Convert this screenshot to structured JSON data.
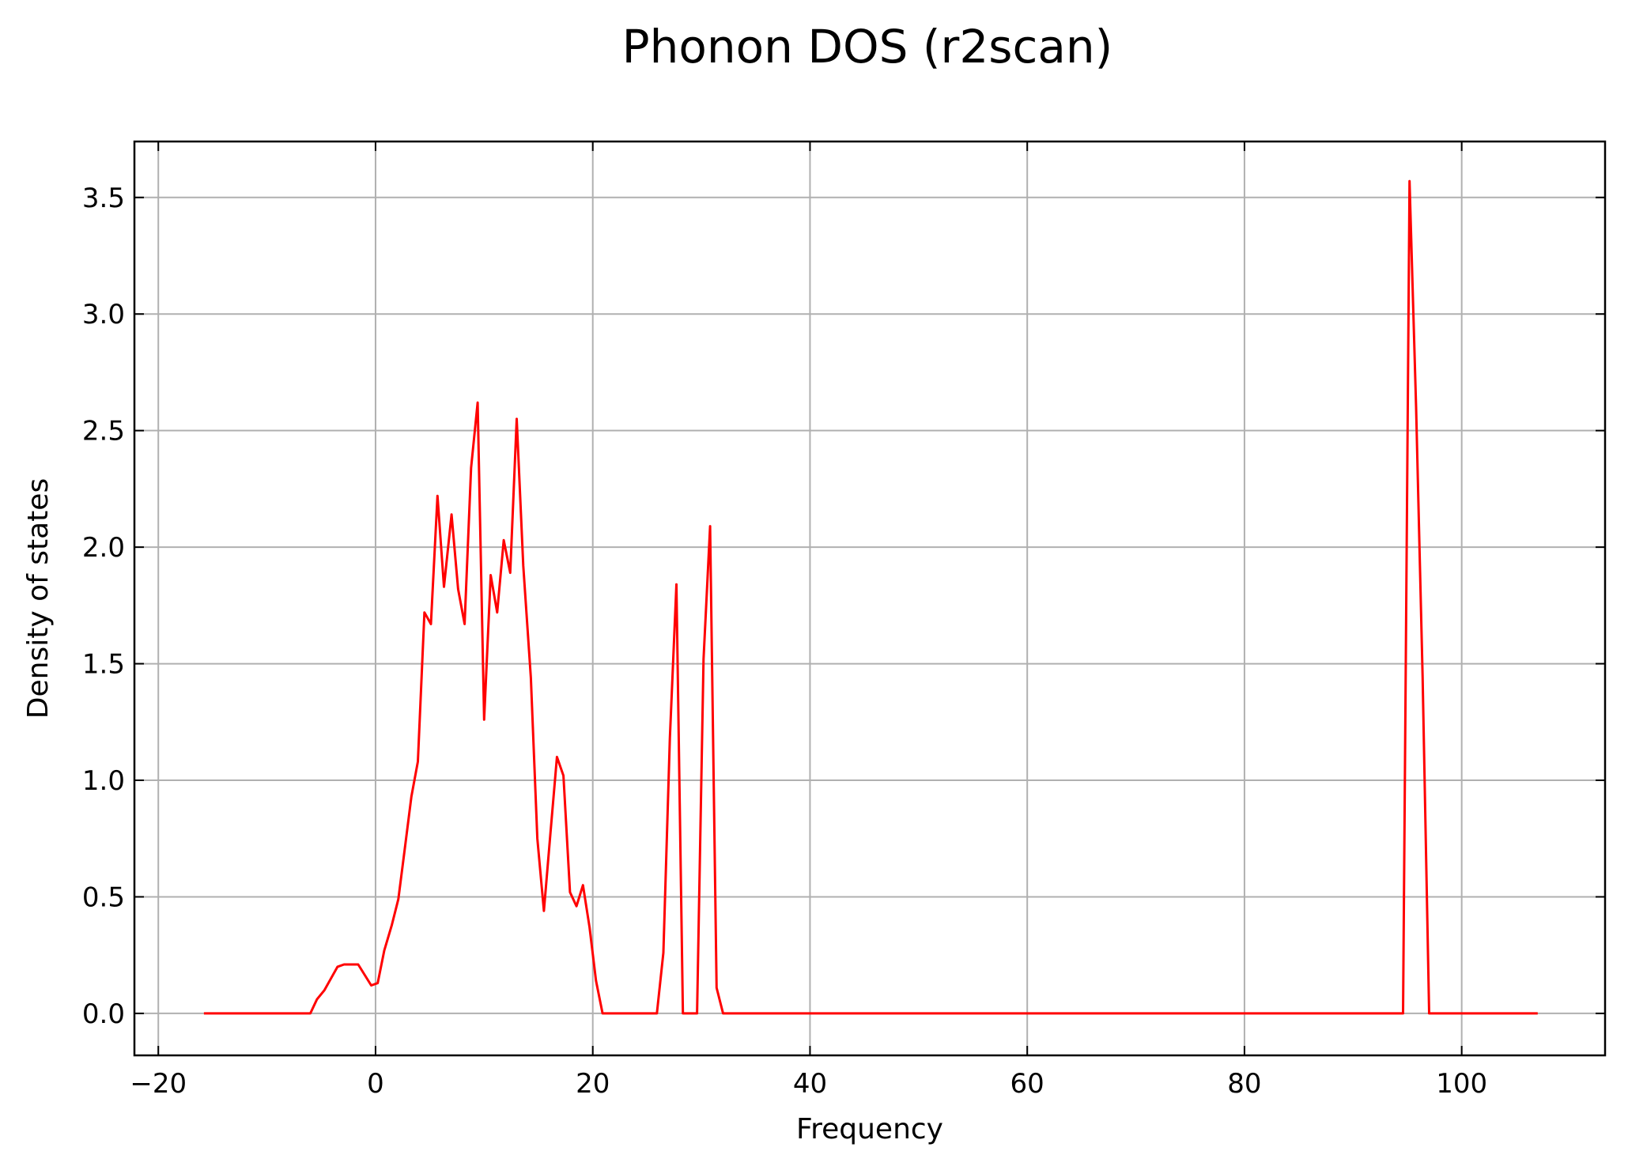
{
  "chart_data": {
    "type": "line",
    "title": "Phonon DOS (r2scan)",
    "xlabel": "Frequency",
    "ylabel": "Density of states",
    "xlim": [
      -22.2,
      113.2
    ],
    "ylim": [
      -0.18,
      3.74
    ],
    "x_ticks": [
      -20,
      0,
      20,
      40,
      60,
      80,
      100
    ],
    "x_tick_labels": [
      "−20",
      "0",
      "20",
      "40",
      "60",
      "80",
      "100"
    ],
    "y_ticks": [
      0.0,
      0.5,
      1.0,
      1.5,
      2.0,
      2.5,
      3.0,
      3.5
    ],
    "y_tick_labels": [
      "0.0",
      "0.5",
      "1.0",
      "1.5",
      "2.0",
      "2.5",
      "3.0",
      "3.5"
    ],
    "grid": true,
    "series": [
      {
        "color": "#ff0000",
        "x": [
          -15.8,
          -6.0,
          -5.4,
          -4.7,
          -4.1,
          -3.5,
          -2.9,
          -2.2,
          -1.6,
          -0.4,
          0.2,
          0.8,
          1.5,
          2.1,
          2.7,
          3.3,
          3.9,
          4.5,
          5.1,
          5.7,
          6.3,
          7.0,
          7.6,
          8.2,
          8.8,
          9.4,
          10.0,
          10.6,
          11.2,
          11.8,
          12.4,
          13.0,
          13.6,
          14.3,
          14.9,
          15.5,
          16.1,
          16.7,
          17.3,
          17.9,
          18.5,
          19.1,
          19.7,
          20.3,
          20.9,
          25.9,
          26.5,
          27.1,
          27.7,
          28.3,
          29.6,
          30.2,
          30.8,
          31.4,
          32.0,
          94.6,
          95.2,
          95.8,
          96.4,
          97.0,
          107.0
        ],
        "y": [
          0.0,
          0.0,
          0.06,
          0.1,
          0.15,
          0.2,
          0.21,
          0.21,
          0.21,
          0.12,
          0.13,
          0.27,
          0.38,
          0.49,
          0.71,
          0.93,
          1.08,
          1.72,
          1.67,
          2.22,
          1.83,
          2.14,
          1.82,
          1.67,
          2.34,
          2.62,
          1.26,
          1.88,
          1.72,
          2.03,
          1.89,
          2.55,
          1.92,
          1.44,
          0.75,
          0.44,
          0.77,
          1.1,
          1.02,
          0.52,
          0.46,
          0.55,
          0.37,
          0.14,
          0.0,
          0.0,
          0.26,
          1.18,
          1.84,
          0.0,
          0.0,
          1.52,
          2.09,
          0.11,
          0.0,
          0.0,
          3.57,
          2.6,
          1.45,
          0.0,
          0.0
        ]
      }
    ]
  }
}
